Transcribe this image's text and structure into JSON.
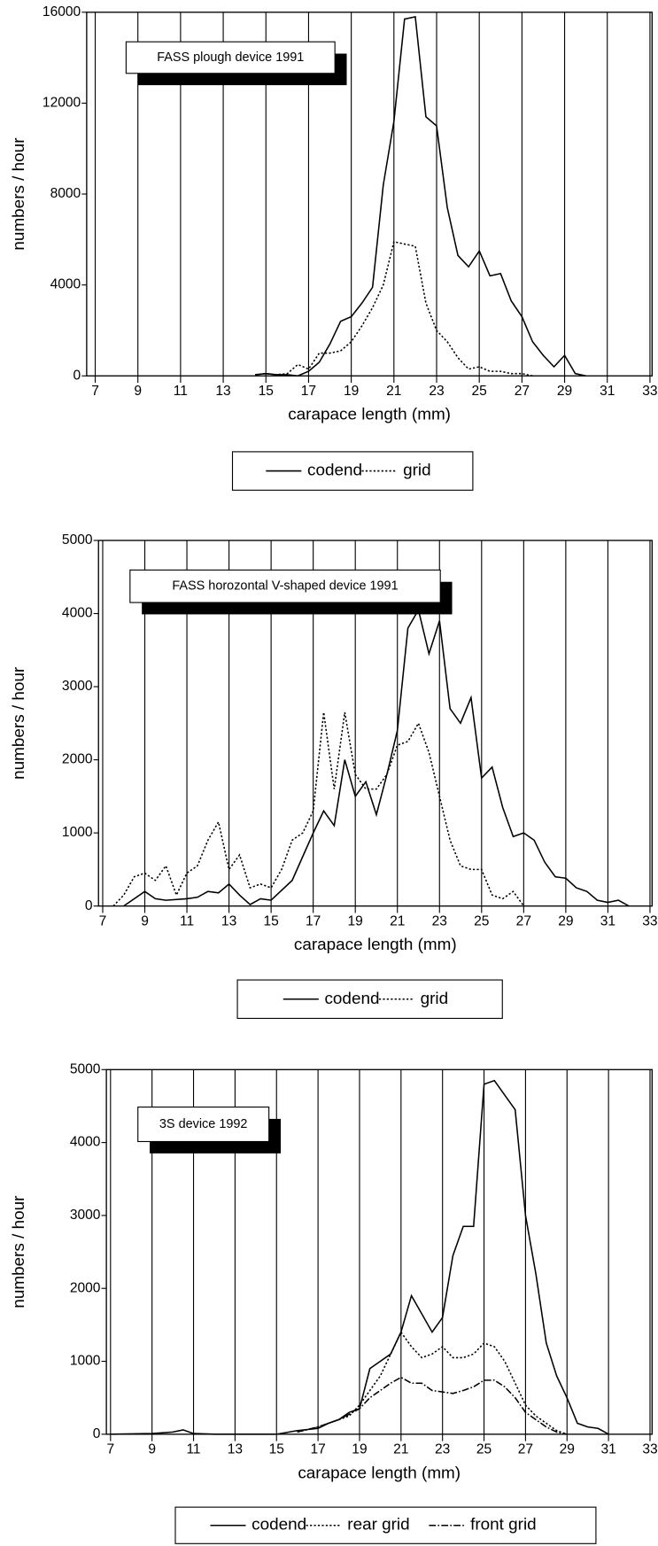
{
  "chart_data": [
    {
      "type": "line",
      "annotation": "FASS plough device 1991",
      "xlabel": "carapace length (mm)",
      "ylabel": "numbers / hour",
      "xlim": [
        6.6,
        33.1
      ],
      "xticks": [
        7,
        9,
        11,
        13,
        15,
        17,
        19,
        21,
        23,
        25,
        27,
        29,
        31,
        33
      ],
      "ylim": [
        0,
        16000
      ],
      "yticks": [
        0,
        4000,
        8000,
        12000,
        16000
      ],
      "grid": "x",
      "series": [
        {
          "name": "codend",
          "color": "#000000",
          "style": "solid",
          "x": [
            14.5,
            15,
            15.5,
            16,
            16.5,
            17,
            17.5,
            18,
            18.5,
            19,
            19.5,
            20,
            20.5,
            21,
            21.5,
            22,
            22.5,
            23,
            23.5,
            24,
            24.5,
            25,
            25.5,
            26,
            26.5,
            27,
            27.5,
            28,
            28.5,
            29,
            29.5,
            30
          ],
          "values": [
            50,
            100,
            50,
            50,
            0,
            200,
            600,
            1400,
            2400,
            2600,
            3200,
            3900,
            8400,
            11200,
            15700,
            15800,
            11400,
            11000,
            7400,
            5300,
            4800,
            5500,
            4400,
            4500,
            3300,
            2600,
            1500,
            900,
            400,
            900,
            100,
            0
          ]
        },
        {
          "name": "grid",
          "color": "#000000",
          "style": "dotted",
          "x": [
            14.5,
            15,
            15.5,
            16,
            16.5,
            17,
            17.5,
            18,
            18.5,
            19,
            19.5,
            20,
            20.5,
            21,
            21.5,
            22,
            22.5,
            23,
            23.5,
            24,
            24.5,
            25,
            25.5,
            26,
            26.5,
            27,
            27.5
          ],
          "values": [
            50,
            100,
            50,
            100,
            500,
            300,
            1000,
            1000,
            1100,
            1500,
            2200,
            3000,
            4000,
            5900,
            5800,
            5700,
            3200,
            2000,
            1500,
            800,
            300,
            400,
            200,
            200,
            100,
            100,
            0
          ]
        }
      ]
    },
    {
      "type": "line",
      "annotation": "FASS horozontal V-shaped device 1991",
      "xlabel": "carapace length (mm)",
      "ylabel": "numbers / hour",
      "xlim": [
        6.8,
        33.1
      ],
      "xticks": [
        7,
        9,
        11,
        13,
        15,
        17,
        19,
        21,
        23,
        25,
        27,
        29,
        31,
        33
      ],
      "ylim": [
        0,
        5000
      ],
      "yticks": [
        0,
        1000,
        2000,
        3000,
        4000,
        5000
      ],
      "grid": "x",
      "series": [
        {
          "name": "codend",
          "color": "#000000",
          "style": "solid",
          "x": [
            8,
            9,
            9.5,
            10,
            11,
            11.5,
            12,
            12.5,
            13,
            13.5,
            14,
            14.5,
            15,
            16,
            17,
            17.5,
            18,
            18.5,
            19,
            19.5,
            20,
            20.5,
            21,
            21.5,
            22,
            22.5,
            23,
            23.5,
            24,
            24.5,
            25,
            25.5,
            26,
            26.5,
            27,
            27.5,
            28,
            28.5,
            29,
            29.5,
            30,
            30.5,
            31,
            31.5,
            32
          ],
          "values": [
            0,
            200,
            100,
            80,
            100,
            120,
            200,
            180,
            300,
            150,
            20,
            100,
            80,
            350,
            1000,
            1300,
            1100,
            2000,
            1500,
            1700,
            1250,
            1800,
            2400,
            3800,
            4050,
            3450,
            3900,
            2700,
            2500,
            2850,
            1750,
            1900,
            1350,
            950,
            1000,
            900,
            600,
            400,
            380,
            250,
            200,
            80,
            50,
            80,
            0
          ]
        },
        {
          "name": "grid",
          "color": "#000000",
          "style": "dotted",
          "x": [
            7.5,
            8,
            8.5,
            9,
            9.5,
            10,
            10.5,
            11,
            11.5,
            12,
            12.5,
            13,
            13.5,
            14,
            14.5,
            15,
            15.5,
            16,
            16.5,
            17,
            17.5,
            18,
            18.5,
            19,
            19.5,
            20,
            20.5,
            21,
            21.5,
            22,
            22.5,
            23,
            23.5,
            24,
            24.5,
            25,
            25.5,
            26,
            26.5,
            27
          ],
          "values": [
            0,
            150,
            400,
            450,
            350,
            550,
            150,
            450,
            550,
            900,
            1150,
            500,
            700,
            250,
            300,
            250,
            500,
            900,
            1000,
            1300,
            2650,
            1600,
            2650,
            1800,
            1600,
            1600,
            1800,
            2200,
            2250,
            2500,
            2100,
            1500,
            900,
            550,
            500,
            500,
            150,
            100,
            200,
            0
          ]
        }
      ]
    },
    {
      "type": "line",
      "annotation": "3S device 1992",
      "xlabel": "carapace length (mm)",
      "ylabel": "numbers / hour",
      "xlim": [
        6.8,
        33.1
      ],
      "xticks": [
        7,
        9,
        11,
        13,
        15,
        17,
        19,
        21,
        23,
        25,
        27,
        29,
        31,
        33
      ],
      "ylim": [
        0,
        5000
      ],
      "yticks": [
        0,
        1000,
        2000,
        3000,
        4000,
        5000
      ],
      "grid": "x",
      "series": [
        {
          "name": "codend",
          "color": "#000000",
          "style": "solid",
          "x": [
            7,
            9,
            10,
            10.5,
            11,
            12,
            15,
            16,
            17,
            17.5,
            18,
            18.5,
            19,
            19.5,
            20,
            20.5,
            21,
            21.5,
            22,
            22.5,
            23,
            23.5,
            24,
            24.5,
            25,
            25.5,
            26,
            26.5,
            27,
            27.5,
            28,
            28.5,
            29,
            29.5,
            30,
            30.5,
            31
          ],
          "values": [
            0,
            10,
            30,
            60,
            10,
            0,
            0,
            50,
            80,
            150,
            200,
            300,
            350,
            900,
            1000,
            1100,
            1400,
            1900,
            1650,
            1400,
            1600,
            2450,
            2850,
            2850,
            4800,
            4850,
            4650,
            4450,
            3000,
            2200,
            1250,
            800,
            500,
            150,
            100,
            80,
            0
          ]
        },
        {
          "name": "rear grid",
          "color": "#000000",
          "style": "dotted",
          "x": [
            16,
            17,
            18,
            18.5,
            19,
            19.5,
            20,
            20.5,
            21,
            21.5,
            22,
            22.5,
            23,
            23.5,
            24,
            24.5,
            25,
            25.5,
            26,
            26.5,
            27,
            27.5,
            28,
            28.5,
            29
          ],
          "values": [
            30,
            100,
            200,
            250,
            400,
            600,
            800,
            1100,
            1400,
            1200,
            1050,
            1100,
            1200,
            1050,
            1050,
            1100,
            1250,
            1200,
            1000,
            700,
            400,
            250,
            150,
            50,
            0
          ]
        },
        {
          "name": "front grid",
          "color": "#000000",
          "style": "dashdot",
          "x": [
            16,
            17,
            18,
            19,
            19.5,
            20,
            20.5,
            21,
            21.5,
            22,
            22.5,
            23,
            23.5,
            24,
            24.5,
            25,
            25.5,
            26,
            26.5,
            27,
            27.5,
            28,
            28.5,
            29
          ],
          "values": [
            30,
            100,
            200,
            350,
            500,
            600,
            700,
            780,
            700,
            700,
            600,
            580,
            560,
            600,
            650,
            740,
            740,
            650,
            500,
            300,
            200,
            100,
            30,
            0
          ]
        }
      ]
    }
  ]
}
